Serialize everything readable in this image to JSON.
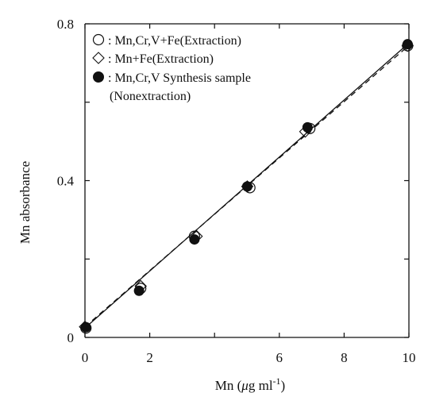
{
  "chart_data": {
    "type": "scatter",
    "title": "",
    "xlabel": "Mn (μg ml-1)",
    "xlabel_parts": {
      "main": "Mn (",
      "mu": "μ",
      "rest": "g ml",
      "sup": "-1",
      "close": ")"
    },
    "ylabel": "Mn absorbance",
    "xlim": [
      0,
      10
    ],
    "ylim": [
      0,
      0.8
    ],
    "x_ticks": [
      0,
      2,
      4,
      6,
      8,
      10
    ],
    "x_tick_labels": [
      "0",
      "2",
      "",
      "6",
      "8",
      "10"
    ],
    "y_ticks": [
      0,
      0.2,
      0.4,
      0.6,
      0.8
    ],
    "y_tick_labels": [
      "0",
      "",
      "0.4",
      "",
      "0.8"
    ],
    "grid": false,
    "legend_position": "top-left",
    "series": [
      {
        "name": "Mn,Cr,V+Fe(Extraction)",
        "legend_label": ": Mn,Cr,V+Fe(Extraction)",
        "marker": "open-circle",
        "x": [
          0.03,
          1.72,
          3.38,
          5.09,
          6.94,
          9.96
        ],
        "y": [
          0.024,
          0.125,
          0.258,
          0.382,
          0.533,
          0.744
        ]
      },
      {
        "name": "Mn+Fe(Extraction)",
        "legend_label": ": Mn+Fe(Extraction)",
        "marker": "open-diamond",
        "x": [
          0.0,
          1.72,
          3.45,
          5.01,
          6.8,
          9.96
        ],
        "y": [
          0.027,
          0.131,
          0.258,
          0.385,
          0.525,
          0.744
        ]
      },
      {
        "name": "Mn,Cr,V Synthesis sample (Nonextraction)",
        "legend_label": ": Mn,Cr,V Synthesis sample",
        "legend_label_line2": "(Nonextraction)",
        "marker": "filled-circle",
        "x": [
          0.03,
          1.67,
          3.38,
          5.01,
          6.87,
          9.96
        ],
        "y": [
          0.026,
          0.119,
          0.25,
          0.385,
          0.536,
          0.748
        ]
      }
    ],
    "fit_lines": [
      {
        "style": "solid",
        "x": [
          0,
          10
        ],
        "y": [
          0.024,
          0.751
        ]
      },
      {
        "style": "dashed",
        "x": [
          0,
          10
        ],
        "y": [
          0.027,
          0.745
        ]
      }
    ]
  }
}
